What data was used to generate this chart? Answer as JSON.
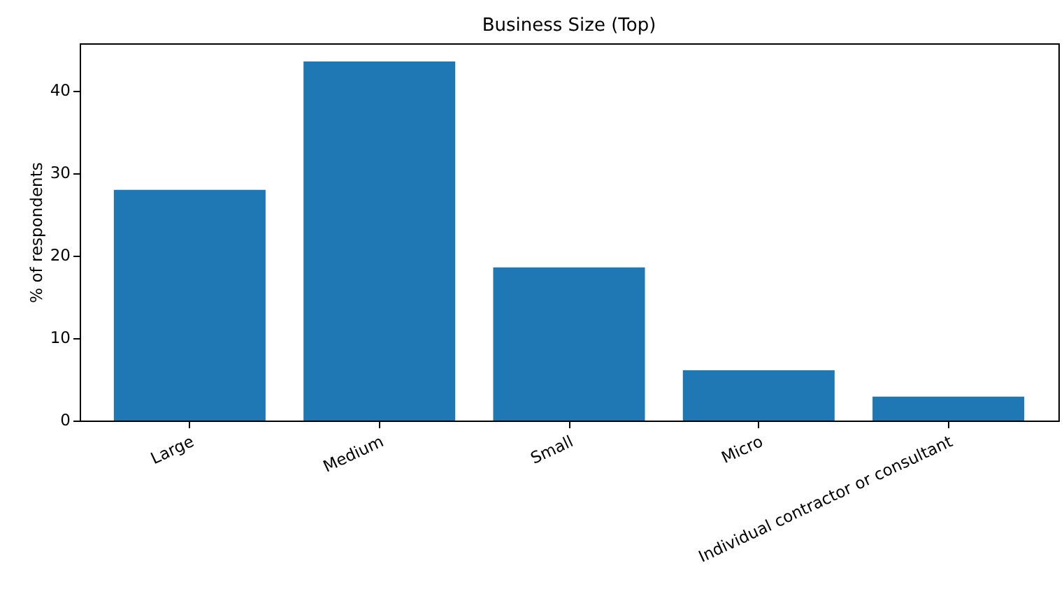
{
  "chart_data": {
    "type": "bar",
    "title": "Business Size (Top)",
    "ylabel": "% of respondents",
    "categories": [
      "Large",
      "Medium",
      "Small",
      "Micro",
      "Individual contractor or consultant"
    ],
    "values": [
      28.0,
      43.6,
      18.6,
      6.1,
      2.9
    ],
    "color": "#1f77b4",
    "ylim": [
      0,
      45.8
    ],
    "yticks": [
      0,
      10,
      20,
      30,
      40
    ],
    "grid": false
  }
}
